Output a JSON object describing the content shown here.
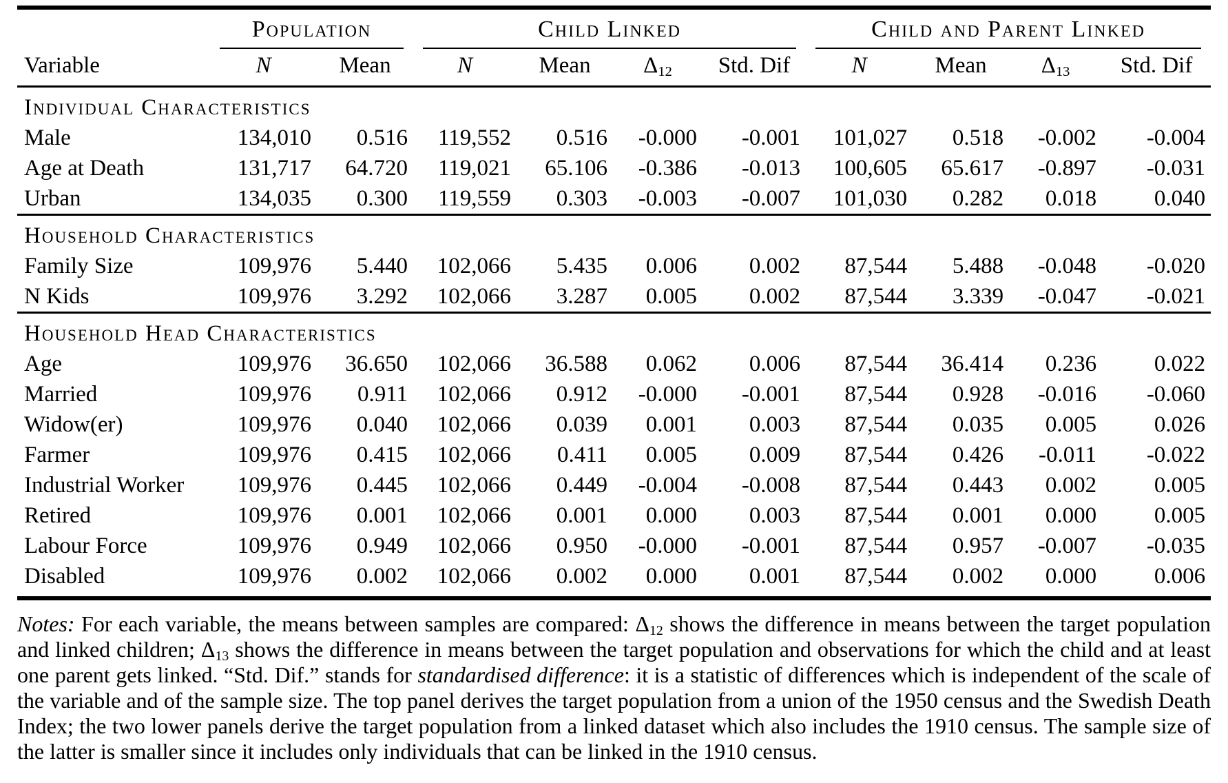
{
  "table": {
    "groups": [
      {
        "label": "Population",
        "span": 2
      },
      {
        "label": "Child Linked",
        "span": 4
      },
      {
        "label": "Child and Parent Linked",
        "span": 4
      }
    ],
    "col_headers": {
      "variable": "Variable",
      "n": "N",
      "mean": "Mean",
      "delta12_base": "Δ",
      "delta12_sub": "12",
      "delta13_base": "Δ",
      "delta13_sub": "13",
      "std_dif": "Std. Dif"
    },
    "sections": [
      {
        "title": "Individual Characteristics",
        "rows": [
          {
            "label": "Male",
            "values": [
              "134,010",
              "0.516",
              "119,552",
              "0.516",
              "-0.000",
              "-0.001",
              "101,027",
              "0.518",
              "-0.002",
              "-0.004"
            ]
          },
          {
            "label": "Age at Death",
            "values": [
              "131,717",
              "64.720",
              "119,021",
              "65.106",
              "-0.386",
              "-0.013",
              "100,605",
              "65.617",
              "-0.897",
              "-0.031"
            ]
          },
          {
            "label": "Urban",
            "values": [
              "134,035",
              "0.300",
              "119,559",
              "0.303",
              "-0.003",
              "-0.007",
              "101,030",
              "0.282",
              "0.018",
              "0.040"
            ]
          }
        ]
      },
      {
        "title": "Household Characteristics",
        "rows": [
          {
            "label": "Family Size",
            "values": [
              "109,976",
              "5.440",
              "102,066",
              "5.435",
              "0.006",
              "0.002",
              "87,544",
              "5.488",
              "-0.048",
              "-0.020"
            ]
          },
          {
            "label": "N Kids",
            "values": [
              "109,976",
              "3.292",
              "102,066",
              "3.287",
              "0.005",
              "0.002",
              "87,544",
              "3.339",
              "-0.047",
              "-0.021"
            ]
          }
        ]
      },
      {
        "title": "Household Head Characteristics",
        "rows": [
          {
            "label": "Age",
            "values": [
              "109,976",
              "36.650",
              "102,066",
              "36.588",
              "0.062",
              "0.006",
              "87,544",
              "36.414",
              "0.236",
              "0.022"
            ]
          },
          {
            "label": "Married",
            "values": [
              "109,976",
              "0.911",
              "102,066",
              "0.912",
              "-0.000",
              "-0.001",
              "87,544",
              "0.928",
              "-0.016",
              "-0.060"
            ]
          },
          {
            "label": "Widow(er)",
            "values": [
              "109,976",
              "0.040",
              "102,066",
              "0.039",
              "0.001",
              "0.003",
              "87,544",
              "0.035",
              "0.005",
              "0.026"
            ]
          },
          {
            "label": "Farmer",
            "values": [
              "109,976",
              "0.415",
              "102,066",
              "0.411",
              "0.005",
              "0.009",
              "87,544",
              "0.426",
              "-0.011",
              "-0.022"
            ]
          },
          {
            "label": "Industrial Worker",
            "values": [
              "109,976",
              "0.445",
              "102,066",
              "0.449",
              "-0.004",
              "-0.008",
              "87,544",
              "0.443",
              "0.002",
              "0.005"
            ]
          },
          {
            "label": "Retired",
            "values": [
              "109,976",
              "0.001",
              "102,066",
              "0.001",
              "0.000",
              "0.003",
              "87,544",
              "0.001",
              "0.000",
              "0.005"
            ]
          },
          {
            "label": "Labour Force",
            "values": [
              "109,976",
              "0.949",
              "102,066",
              "0.950",
              "-0.000",
              "-0.001",
              "87,544",
              "0.957",
              "-0.007",
              "-0.035"
            ]
          },
          {
            "label": "Disabled",
            "values": [
              "109,976",
              "0.002",
              "102,066",
              "0.002",
              "0.000",
              "0.001",
              "87,544",
              "0.002",
              "0.000",
              "0.006"
            ]
          }
        ]
      }
    ]
  },
  "notes": {
    "segments": [
      {
        "style": "italic",
        "text": "Notes:"
      },
      {
        "style": "normal",
        "text": " For each variable, the means between samples are compared: "
      },
      {
        "style": "delta",
        "base": "Δ",
        "sub": "12"
      },
      {
        "style": "normal",
        "text": " shows the difference in means between the target population and linked children; "
      },
      {
        "style": "delta",
        "base": "Δ",
        "sub": "13"
      },
      {
        "style": "normal",
        "text": " shows the difference in means between the target population and observations for which the child and at least one parent gets linked. “Std. Dif.” stands for "
      },
      {
        "style": "italic",
        "text": "standardised difference"
      },
      {
        "style": "normal",
        "text": ": it is a statistic of differences which is independent of the scale of the variable and of the sample size. The top panel derives the target population from a union of the 1950 census and the Swedish Death Index; the two lower panels derive the target population from a linked dataset which also includes the 1910 census. The sample size of the latter is smaller since it includes only individuals that can be linked in the 1910 census."
      }
    ]
  },
  "colors": {
    "text": "#000000",
    "background": "#ffffff"
  }
}
